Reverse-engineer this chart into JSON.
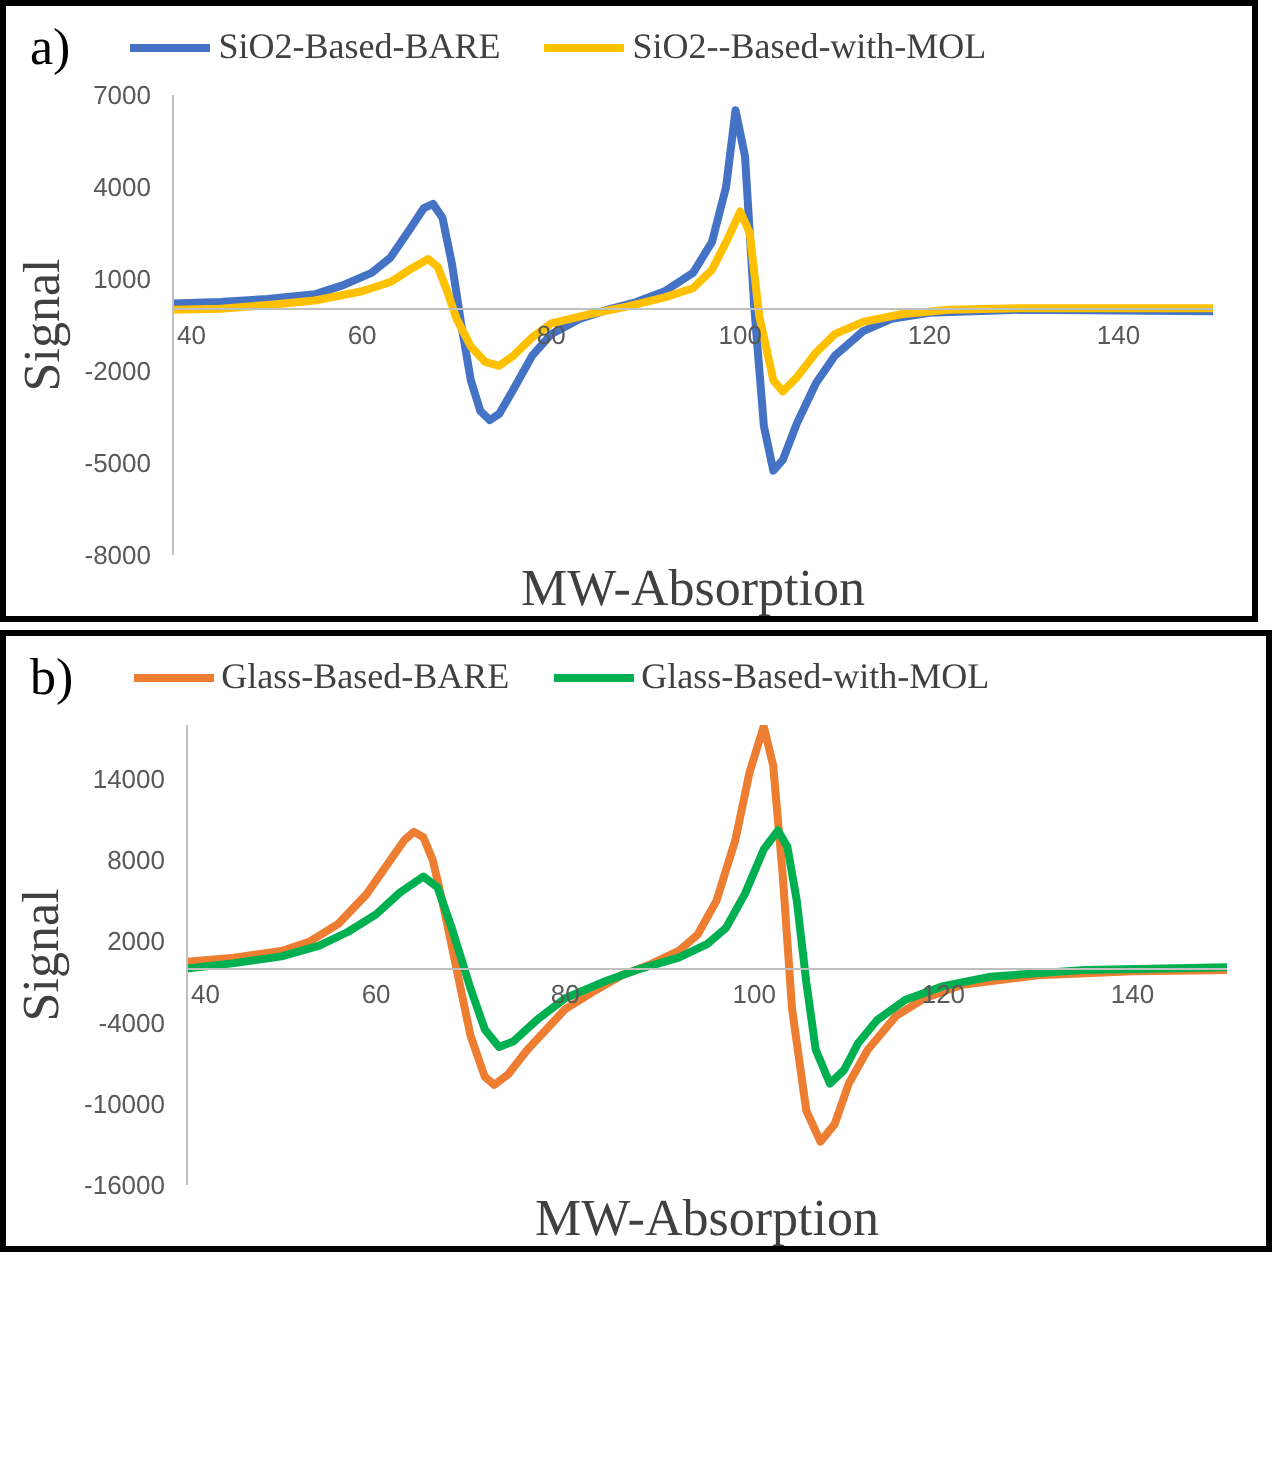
{
  "chart_data": [
    {
      "type": "line",
      "title": "a)",
      "xlabel": "MW-Absorption",
      "ylabel": "Signal",
      "xlim": [
        40,
        150
      ],
      "xticks": [
        40,
        60,
        80,
        100,
        120,
        140
      ],
      "ylim": [
        -8000,
        7000
      ],
      "yticks": [
        -8000,
        -5000,
        -2000,
        1000,
        4000,
        7000
      ],
      "grid": false,
      "legend": "top",
      "marker": "none",
      "line_style": "solid",
      "series": [
        {
          "name": "SiO2-Based-BARE",
          "color": "#4472c4",
          "x": [
            40,
            45,
            50,
            55,
            58,
            61,
            63,
            65,
            66.5,
            67.5,
            68.5,
            69.5,
            70.5,
            71.5,
            72.5,
            73.5,
            74.5,
            76,
            78,
            80,
            83,
            86,
            89,
            92,
            95,
            97,
            98.5,
            99.5,
            100.5,
            101.5,
            102.5,
            103.5,
            104.5,
            106,
            108,
            110,
            113,
            116,
            120,
            130,
            140,
            150
          ],
          "values": [
            200,
            250,
            350,
            500,
            800,
            1200,
            1700,
            2600,
            3300,
            3450,
            3000,
            1500,
            -500,
            -2300,
            -3300,
            -3600,
            -3400,
            -2600,
            -1500,
            -800,
            -300,
            0,
            250,
            600,
            1200,
            2200,
            4000,
            6500,
            5000,
            0,
            -3800,
            -5250,
            -4900,
            -3700,
            -2400,
            -1500,
            -700,
            -300,
            -100,
            0,
            -30,
            -50
          ]
        },
        {
          "name": "SiO2--Based-with-MOL",
          "color": "#ffc000",
          "x": [
            40,
            45,
            50,
            55,
            60,
            63,
            65,
            67,
            68,
            69,
            70,
            71.5,
            73,
            74.5,
            76,
            78,
            80,
            84,
            88,
            92,
            95,
            97,
            98.5,
            100,
            101,
            102,
            103.5,
            104.5,
            106,
            108,
            110,
            113,
            117,
            122,
            130,
            150
          ],
          "values": [
            0,
            30,
            150,
            300,
            600,
            900,
            1300,
            1650,
            1400,
            600,
            -300,
            -1200,
            -1700,
            -1830,
            -1500,
            -900,
            -450,
            -150,
            100,
            400,
            700,
            1300,
            2200,
            3200,
            2500,
            -200,
            -2300,
            -2670,
            -2200,
            -1400,
            -800,
            -400,
            -150,
            0,
            50,
            50
          ]
        }
      ]
    },
    {
      "type": "line",
      "title": "b)",
      "xlabel": "MW-Absorption",
      "ylabel": "Signal",
      "xlim": [
        40,
        150
      ],
      "xticks": [
        40,
        60,
        80,
        100,
        120,
        140
      ],
      "ylim": [
        -16000,
        18000
      ],
      "yticks": [
        -16000,
        -10000,
        -4000,
        2000,
        8000,
        14000
      ],
      "grid": false,
      "legend": "top",
      "marker": "none",
      "line_style": "solid",
      "series": [
        {
          "name": "Glass-Based-BARE",
          "color": "#ed7d31",
          "x": [
            40,
            45,
            50,
            53,
            56,
            59,
            61.5,
            63,
            64,
            65,
            66,
            67,
            68.5,
            70,
            71.5,
            72.5,
            74,
            76,
            78,
            80,
            83,
            86,
            89,
            92,
            94,
            96,
            98,
            99.5,
            101,
            102,
            103,
            104,
            105.5,
            107,
            108.5,
            110,
            112,
            115,
            118,
            122,
            130,
            140,
            150
          ],
          "values": [
            500,
            800,
            1300,
            2000,
            3300,
            5500,
            8000,
            9500,
            10100,
            9700,
            8000,
            5000,
            0,
            -5000,
            -8000,
            -8600,
            -7800,
            -6000,
            -4500,
            -3000,
            -1700,
            -500,
            300,
            1300,
            2500,
            5000,
            9500,
            14500,
            17900,
            15000,
            7000,
            -3000,
            -10500,
            -12800,
            -11500,
            -8500,
            -6000,
            -3500,
            -2200,
            -1200,
            -500,
            -200,
            -100
          ]
        },
        {
          "name": "Glass-Based-with-MOL",
          "color": "#00b050",
          "x": [
            40,
            45,
            50,
            54,
            57,
            60,
            62.5,
            65,
            66.5,
            68,
            70,
            71.5,
            73,
            74.5,
            77,
            80,
            84,
            88,
            92,
            95,
            97,
            99,
            101,
            102.5,
            103.5,
            104.5,
            105.5,
            106.5,
            108,
            109.5,
            111,
            113,
            116,
            120,
            125,
            135,
            150
          ],
          "values": [
            0,
            400,
            900,
            1700,
            2700,
            4000,
            5600,
            6800,
            6000,
            3000,
            -1500,
            -4500,
            -5800,
            -5400,
            -3800,
            -2200,
            -1000,
            0,
            800,
            1800,
            3000,
            5500,
            8800,
            10200,
            9000,
            5000,
            -1000,
            -6000,
            -8500,
            -7500,
            -5500,
            -3800,
            -2300,
            -1300,
            -600,
            -100,
            100
          ]
        }
      ]
    }
  ]
}
